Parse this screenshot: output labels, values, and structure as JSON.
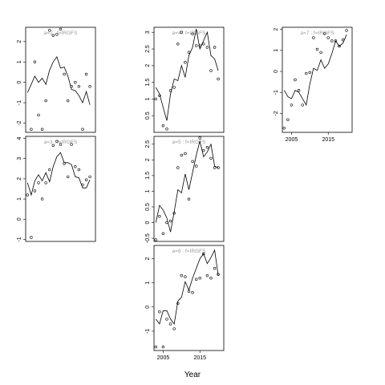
{
  "chart_data": {
    "type": "line",
    "xlabel": "Year",
    "x_ticks": [
      2005,
      2015
    ],
    "panels": [
      {
        "title": "a=2 : f=IRGFS",
        "xlim": [
          2002.5,
          2021.5
        ],
        "ylim": [
          -2.45,
          2.7
        ],
        "yticks": [
          -2,
          -1,
          0,
          1,
          2
        ],
        "show_x_ticks": false,
        "line": {
          "x": [
            2003,
            2004,
            2005,
            2006,
            2007,
            2008,
            2009,
            2010,
            2011,
            2012,
            2013,
            2014,
            2015,
            2016,
            2017,
            2018,
            2019,
            2020
          ],
          "y": [
            -0.5,
            -0.1,
            0.3,
            0.0,
            0.2,
            -0.1,
            0.6,
            1.0,
            1.25,
            0.7,
            0.75,
            0.3,
            -0.35,
            -0.4,
            -0.65,
            -1.0,
            -0.45,
            -1.1
          ]
        },
        "points": {
          "x": [
            2004,
            2005,
            2006,
            2007,
            2008,
            2009,
            2010,
            2011,
            2012,
            2013,
            2014,
            2015,
            2016,
            2017,
            2018,
            2019,
            2020
          ],
          "y": [
            -2.3,
            1.0,
            -1.6,
            -2.3,
            -0.9,
            2.55,
            2.3,
            2.35,
            2.6,
            0.4,
            -0.9,
            -0.2,
            0.0,
            -0.2,
            -2.3,
            0.4,
            -0.2
          ]
        }
      },
      {
        "title": "a=4 : f=IRGFS",
        "xlim": [
          2002.5,
          2021.5
        ],
        "ylim": [
          0.0,
          3.15
        ],
        "yticks": [
          0.5,
          1.0,
          1.5,
          2.0,
          2.5,
          3.0
        ],
        "show_x_ticks": false,
        "line": {
          "x": [
            2003,
            2004,
            2005,
            2006,
            2007,
            2008,
            2009,
            2010,
            2011,
            2012,
            2013,
            2014,
            2015,
            2016,
            2017,
            2018,
            2019,
            2020
          ],
          "y": [
            1.35,
            1.15,
            0.75,
            0.35,
            1.15,
            1.6,
            1.55,
            2.0,
            1.65,
            2.3,
            2.55,
            3.1,
            2.5,
            2.75,
            3.0,
            2.3,
            2.2,
            1.85
          ]
        },
        "points": {
          "x": [
            2003,
            2004,
            2005,
            2006,
            2007,
            2008,
            2009,
            2010,
            2011,
            2012,
            2013,
            2014,
            2015,
            2016,
            2017,
            2018,
            2019,
            2020
          ],
          "y": [
            1.0,
            1.1,
            0.2,
            0.1,
            1.25,
            1.35,
            2.65,
            3.0,
            2.1,
            2.4,
            2.95,
            2.6,
            2.6,
            2.65,
            2.55,
            1.85,
            2.55,
            1.6
          ]
        }
      },
      {
        "title": "a=7 : f=IRGFS",
        "xlim": [
          2002.5,
          2021.5
        ],
        "ylim": [
          -2.9,
          2.1
        ],
        "yticks": [
          -2,
          -1,
          0,
          1,
          2
        ],
        "show_x_ticks": true,
        "line": {
          "x": [
            2003,
            2004,
            2005,
            2006,
            2007,
            2008,
            2009,
            2010,
            2011,
            2012,
            2013,
            2014,
            2015,
            2016,
            2017,
            2018,
            2019,
            2020
          ],
          "y": [
            -0.9,
            -1.2,
            -1.3,
            -0.9,
            -1.0,
            -1.3,
            -1.6,
            -0.6,
            0.15,
            0.05,
            0.55,
            0.15,
            0.35,
            0.85,
            1.45,
            1.2,
            1.35,
            1.75
          ]
        },
        "points": {
          "x": [
            2003,
            2004,
            2005,
            2006,
            2007,
            2008,
            2009,
            2010,
            2011,
            2012,
            2013,
            2014,
            2015,
            2016,
            2017,
            2018,
            2019,
            2020
          ],
          "y": [
            -2.7,
            -2.3,
            -1.6,
            -0.4,
            -0.9,
            -1.6,
            -0.1,
            -0.05,
            1.6,
            1.05,
            0.9,
            1.8,
            1.6,
            1.45,
            1.45,
            1.2,
            1.5,
            1.95
          ]
        }
      },
      {
        "title": "a=3 : f=IRGFS",
        "xlim": [
          2002.5,
          2021.5
        ],
        "ylim": [
          -1.1,
          4.1
        ],
        "yticks": [
          -1,
          0,
          1,
          2,
          3,
          4
        ],
        "show_x_ticks": false,
        "line": {
          "x": [
            2003,
            2004,
            2005,
            2006,
            2007,
            2008,
            2009,
            2010,
            2011,
            2012,
            2013,
            2014,
            2015,
            2016,
            2017,
            2018,
            2019,
            2020
          ],
          "y": [
            1.8,
            1.2,
            1.9,
            2.2,
            1.9,
            2.3,
            1.85,
            2.6,
            3.1,
            3.3,
            2.8,
            2.8,
            2.7,
            2.1,
            2.05,
            1.55,
            1.55,
            1.95
          ]
        },
        "points": {
          "x": [
            2003,
            2004,
            2005,
            2006,
            2007,
            2008,
            2009,
            2010,
            2011,
            2012,
            2013,
            2014,
            2015,
            2016,
            2017,
            2018,
            2019,
            2020
          ],
          "y": [
            1.2,
            -0.9,
            1.4,
            1.8,
            1.0,
            1.8,
            2.45,
            3.65,
            3.85,
            3.7,
            2.75,
            2.1,
            3.7,
            2.6,
            2.45,
            1.7,
            1.95,
            2.1
          ]
        }
      },
      {
        "title": "a=5 : f=IRGFS",
        "xlim": [
          2002.5,
          2021.5
        ],
        "ylim": [
          -0.6,
          2.75
        ],
        "yticks": [
          -0.5,
          0.0,
          0.5,
          1.0,
          1.5,
          2.0,
          2.5
        ],
        "show_x_ticks": false,
        "line": {
          "x": [
            2003,
            2004,
            2005,
            2006,
            2007,
            2008,
            2009,
            2010,
            2011,
            2012,
            2013,
            2014,
            2015,
            2016,
            2017,
            2018,
            2019,
            2020
          ],
          "y": [
            0.0,
            0.55,
            0.4,
            0.15,
            -0.3,
            0.35,
            1.05,
            0.95,
            1.55,
            1.05,
            1.6,
            2.15,
            2.6,
            2.1,
            2.25,
            2.5,
            1.8,
            1.75
          ]
        },
        "points": {
          "x": [
            2003,
            2004,
            2005,
            2006,
            2007,
            2008,
            2009,
            2010,
            2011,
            2012,
            2013,
            2014,
            2015,
            2016,
            2017,
            2018,
            2019,
            2020
          ],
          "y": [
            -0.55,
            0.2,
            -0.35,
            0.0,
            0.05,
            0.3,
            1.75,
            2.15,
            2.2,
            0.75,
            1.95,
            1.8,
            2.7,
            2.3,
            2.4,
            2.05,
            1.75,
            1.75
          ]
        }
      },
      {
        "title": "a=6 : f=IRGFS",
        "xlim": [
          2002.5,
          2021.5
        ],
        "ylim": [
          -1.8,
          2.55
        ],
        "yticks": [
          -1,
          0,
          1,
          2
        ],
        "show_x_ticks": true,
        "line": {
          "x": [
            2003,
            2004,
            2005,
            2006,
            2007,
            2008,
            2009,
            2010,
            2011,
            2012,
            2013,
            2014,
            2015,
            2016,
            2017,
            2018,
            2019,
            2020
          ],
          "y": [
            -0.5,
            -0.7,
            -0.15,
            -0.15,
            -0.5,
            -0.7,
            0.25,
            0.4,
            1.05,
            0.7,
            1.2,
            1.6,
            2.0,
            2.2,
            1.8,
            2.05,
            2.35,
            1.3
          ]
        },
        "points": {
          "x": [
            2003,
            2004,
            2005,
            2006,
            2007,
            2008,
            2009,
            2010,
            2011,
            2012,
            2013,
            2014,
            2015,
            2016,
            2017,
            2018,
            2019,
            2020
          ],
          "y": [
            -1.65,
            -0.2,
            -1.65,
            -0.5,
            -0.7,
            -0.9,
            0.15,
            1.3,
            1.25,
            0.65,
            0.6,
            1.15,
            1.2,
            2.2,
            1.3,
            1.2,
            1.6,
            1.35
          ]
        }
      }
    ]
  }
}
